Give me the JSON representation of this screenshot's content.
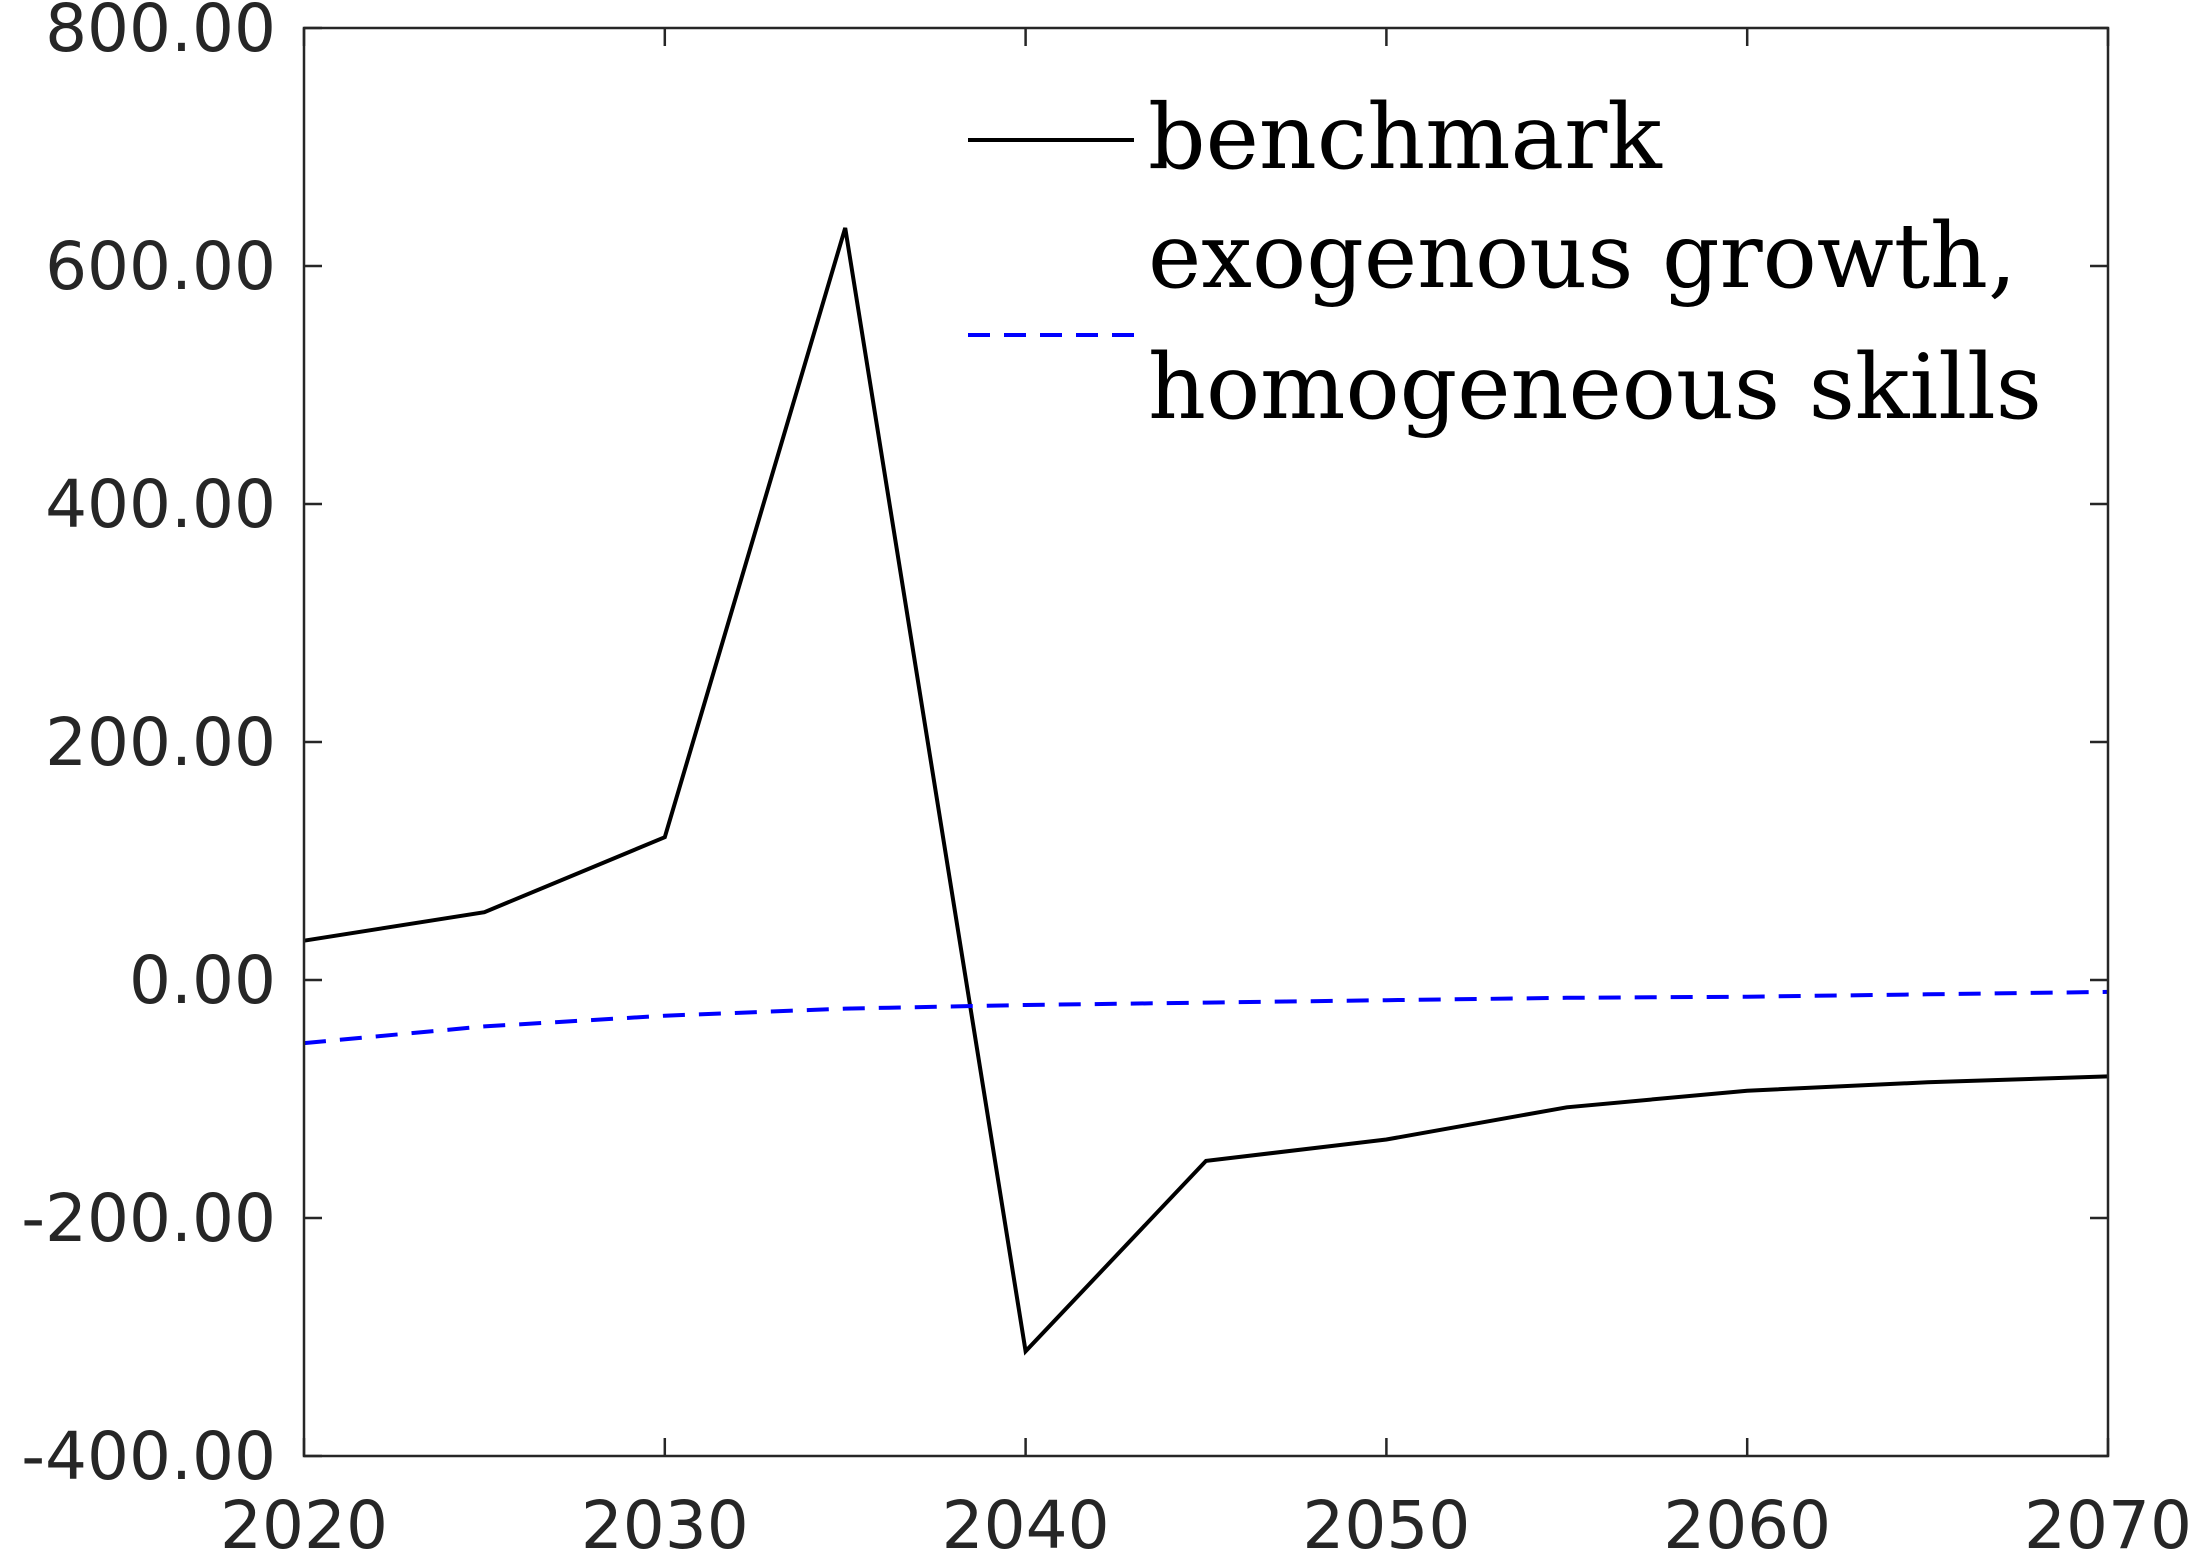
{
  "chart_data": {
    "type": "line",
    "xlim": [
      2020,
      2070
    ],
    "ylim": [
      -400,
      800
    ],
    "x_ticks": [
      2020,
      2030,
      2040,
      2050,
      2060,
      2070
    ],
    "x_tick_labels": [
      "2020",
      "2030",
      "2040",
      "2050",
      "2060",
      "2070"
    ],
    "y_ticks": [
      800,
      600,
      400,
      200,
      0,
      -200,
      -400
    ],
    "y_tick_labels": [
      "800.00",
      "600.00",
      "400.00",
      "200.00",
      "0.00",
      "-200.00",
      "-400.00"
    ],
    "grid": false,
    "legend_position": "top-right",
    "series": [
      {
        "name": "benchmark",
        "color": "#000000",
        "style": "solid",
        "x": [
          2020,
          2025,
          2030,
          2035,
          2040,
          2045,
          2050,
          2055,
          2060,
          2065,
          2070
        ],
        "y": [
          33,
          57,
          120,
          632,
          -312,
          -152,
          -134,
          -107,
          -93,
          -86,
          -81
        ]
      },
      {
        "name": "exogenous growth, homogeneous skills",
        "color": "#0000ff",
        "style": "dashed",
        "x": [
          2020,
          2025,
          2030,
          2035,
          2040,
          2045,
          2050,
          2055,
          2060,
          2065,
          2070
        ],
        "y": [
          -53,
          -39,
          -30,
          -24,
          -21,
          -19,
          -17,
          -15,
          -14,
          -12,
          -10
        ]
      }
    ],
    "legend": {
      "entries": [
        {
          "lines": [
            "benchmark"
          ]
        },
        {
          "lines": [
            "exogenous growth,",
            "homogeneous skills"
          ]
        }
      ]
    }
  }
}
